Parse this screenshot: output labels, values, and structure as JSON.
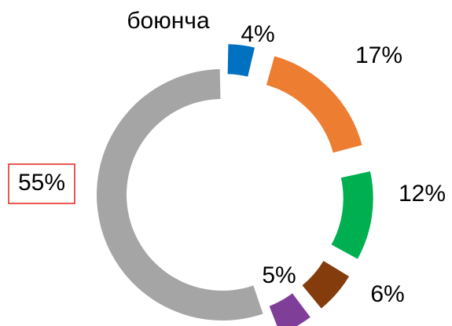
{
  "chart_data": {
    "type": "donut",
    "title": "боюнча",
    "values": [
      4,
      17,
      12,
      6,
      5,
      55
    ],
    "value_labels": [
      "4%",
      "17%",
      "12%",
      "6%",
      "5%",
      "55%"
    ],
    "colors": [
      "#0070c0",
      "#ed7d31",
      "#00b050",
      "#843c0c",
      "#7f3f98",
      "#a5a5a5"
    ]
  }
}
